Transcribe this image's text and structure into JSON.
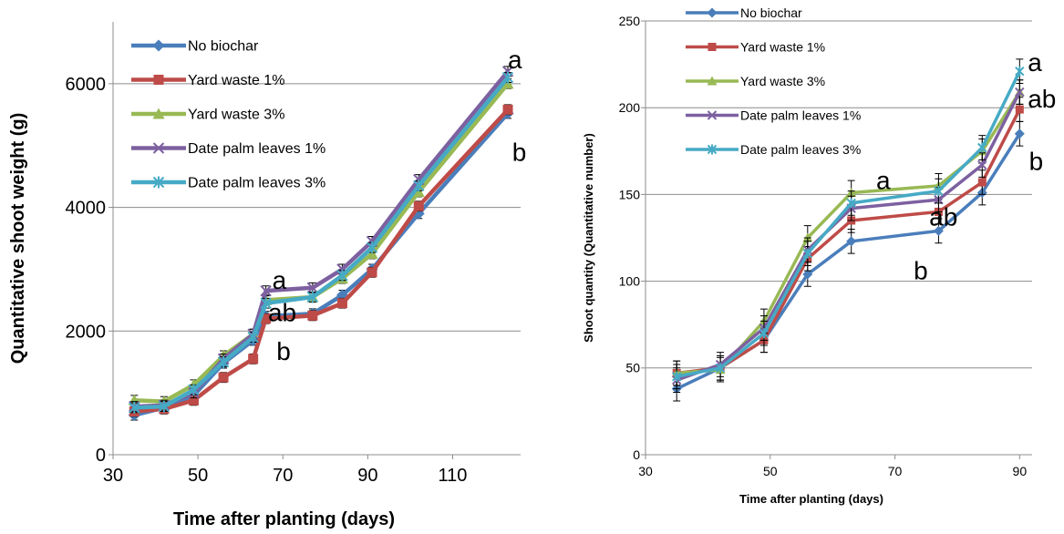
{
  "colors": {
    "No biochar": "#4A7EBB",
    "Yard waste 1%": "#BE4B48",
    "Yard waste 3%": "#98B954",
    "Date palm leaves 1%": "#7D60A0",
    "Date palm leaves 3%": "#46AAC5"
  },
  "legend_order": [
    "No biochar",
    "Yard waste 1%",
    "Yard waste 3%",
    "Date palm leaves 1%",
    "Date palm leaves 3%"
  ],
  "chart_data": [
    {
      "type": "line",
      "xlabel": "Time after planting (days)",
      "ylabel": "Quantitative shoot weight (g)",
      "xlim": [
        30,
        126
      ],
      "ylim": [
        0,
        7000
      ],
      "x_ticks": [
        30,
        50,
        70,
        90,
        110
      ],
      "y_ticks": [
        0,
        2000,
        4000,
        6000
      ],
      "grid": "horizontal",
      "legend": "top-left",
      "x": [
        35,
        42,
        49,
        56,
        63,
        66,
        77,
        84,
        91,
        102,
        123
      ],
      "series": [
        {
          "name": "No biochar",
          "marker": "diamond",
          "values": [
            640,
            760,
            960,
            1480,
            1850,
            2240,
            2280,
            2580,
            3000,
            3900,
            5520
          ]
        },
        {
          "name": "Yard waste 1%",
          "marker": "square",
          "values": [
            700,
            740,
            880,
            1250,
            1550,
            2200,
            2250,
            2450,
            2950,
            4020,
            5580
          ]
        },
        {
          "name": "Yard waste 3%",
          "marker": "triangle",
          "values": [
            880,
            860,
            1130,
            1600,
            1950,
            2500,
            2550,
            2850,
            3250,
            4250,
            6000
          ]
        },
        {
          "name": "Date palm leaves 1%",
          "marker": "x",
          "values": [
            780,
            800,
            1000,
            1550,
            1950,
            2650,
            2700,
            3000,
            3450,
            4450,
            6200
          ]
        },
        {
          "name": "Date palm leaves 3%",
          "marker": "asterisk",
          "values": [
            760,
            780,
            1050,
            1500,
            1900,
            2450,
            2550,
            2900,
            3350,
            4350,
            6100
          ]
        }
      ],
      "error_bars": "approx. 80 g",
      "annotations": [
        {
          "text": "a",
          "x": 123,
          "y": 6250
        },
        {
          "text": "b",
          "x": 124,
          "y": 4750
        },
        {
          "text": "a",
          "x": 67.5,
          "y": 2680
        },
        {
          "text": "ab",
          "x": 66.5,
          "y": 2160
        },
        {
          "text": "b",
          "x": 68.5,
          "y": 1530
        }
      ]
    },
    {
      "type": "line",
      "xlabel": "Time after planting (days)",
      "ylabel": "Shoot quantity (Quantitative number)",
      "xlim": [
        30,
        92
      ],
      "ylim": [
        0,
        250
      ],
      "x_ticks": [
        30,
        50,
        70,
        90
      ],
      "y_ticks": [
        0,
        50,
        100,
        150,
        200,
        250
      ],
      "grid": "horizontal",
      "legend": "top-left",
      "x": [
        35,
        42,
        49,
        56,
        63,
        77,
        84,
        90
      ],
      "series": [
        {
          "name": "No biochar",
          "marker": "diamond",
          "values": [
            38,
            50,
            66,
            104,
            123,
            129,
            151,
            185
          ]
        },
        {
          "name": "Yard waste 1%",
          "marker": "square",
          "values": [
            47,
            50,
            66,
            113,
            135,
            140,
            157,
            199
          ]
        },
        {
          "name": "Yard waste 3%",
          "marker": "triangle",
          "values": [
            47,
            49,
            77,
            125,
            151,
            155,
            175,
            209
          ]
        },
        {
          "name": "Date palm leaves 1%",
          "marker": "x",
          "values": [
            43,
            52,
            73,
            118,
            142,
            147,
            167,
            209
          ]
        },
        {
          "name": "Date palm leaves 3%",
          "marker": "asterisk",
          "values": [
            45,
            50,
            70,
            116,
            145,
            152,
            177,
            221
          ]
        }
      ],
      "error_bars": "approx. 7 units",
      "annotations": [
        {
          "text": "a",
          "x": 91.3,
          "y": 221
        },
        {
          "text": "ab",
          "x": 91.3,
          "y": 200
        },
        {
          "text": "b",
          "x": 91.5,
          "y": 164
        },
        {
          "text": "a",
          "x": 67,
          "y": 153
        },
        {
          "text": "ab",
          "x": 75.5,
          "y": 132
        },
        {
          "text": "b",
          "x": 73,
          "y": 101
        }
      ]
    }
  ]
}
